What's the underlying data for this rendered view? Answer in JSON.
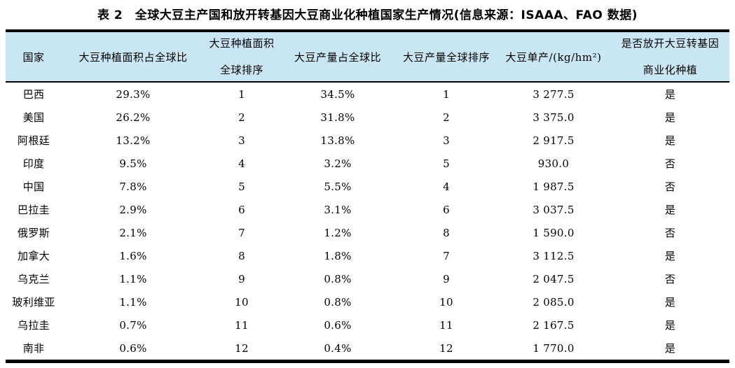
{
  "title": "表 2　全球大豆主产国和放开转基因大豆商业化种植国家生产情况(信息来源：ISAAA、FAO 数据)",
  "colors": {
    "header_bg": "#c9e6f4",
    "border": "#000000",
    "page_bg": "#ffffff"
  },
  "table": {
    "headers": [
      {
        "key": "country",
        "lines": [
          "国家"
        ]
      },
      {
        "key": "area-share",
        "lines": [
          "大豆种植面积占全球比"
        ]
      },
      {
        "key": "area-rank",
        "lines": [
          "大豆种植面积",
          "全球排序"
        ]
      },
      {
        "key": "production-share",
        "lines": [
          "大豆产量占全球比"
        ]
      },
      {
        "key": "production-rank",
        "lines": [
          "大豆产量全球排序"
        ]
      },
      {
        "key": "yield",
        "lines": [
          "大豆单产/(kg/hm²)"
        ]
      },
      {
        "key": "gm-commercialized",
        "lines": [
          "是否放开大豆转基因",
          "商业化种植"
        ]
      }
    ],
    "rows": [
      {
        "cells": [
          "巴西",
          "29.3%",
          "1",
          "34.5%",
          "1",
          "3 277.5",
          "是"
        ]
      },
      {
        "cells": [
          "美国",
          "26.2%",
          "2",
          "31.8%",
          "2",
          "3 375.0",
          "是"
        ]
      },
      {
        "cells": [
          "阿根廷",
          "13.2%",
          "3",
          "13.8%",
          "3",
          "2 917.5",
          "是"
        ]
      },
      {
        "cells": [
          "印度",
          "9.5%",
          "4",
          "3.2%",
          "5",
          "930.0",
          "否"
        ]
      },
      {
        "cells": [
          "中国",
          "7.8%",
          "5",
          "5.5%",
          "4",
          "1 987.5",
          "否"
        ]
      },
      {
        "cells": [
          "巴拉圭",
          "2.9%",
          "6",
          "3.1%",
          "6",
          "3 037.5",
          "是"
        ]
      },
      {
        "cells": [
          "俄罗斯",
          "2.1%",
          "7",
          "1.2%",
          "8",
          "1 590.0",
          "否"
        ]
      },
      {
        "cells": [
          "加拿大",
          "1.6%",
          "8",
          "1.8%",
          "7",
          "3 112.5",
          "是"
        ]
      },
      {
        "cells": [
          "乌克兰",
          "1.1%",
          "9",
          "0.8%",
          "9",
          "2 047.5",
          "否"
        ]
      },
      {
        "cells": [
          "玻利维亚",
          "1.1%",
          "10",
          "0.8%",
          "10",
          "2 085.0",
          "是"
        ]
      },
      {
        "cells": [
          "乌拉圭",
          "0.7%",
          "11",
          "0.6%",
          "11",
          "2 167.5",
          "是"
        ]
      },
      {
        "cells": [
          "南非",
          "0.6%",
          "12",
          "0.4%",
          "12",
          "1 770.0",
          "是"
        ]
      }
    ]
  }
}
